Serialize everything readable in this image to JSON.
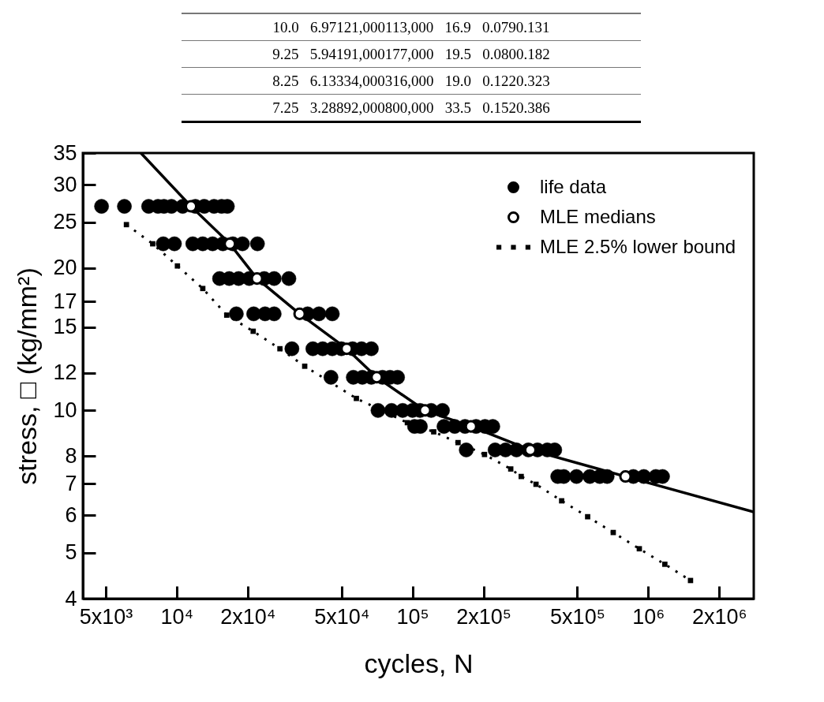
{
  "chart_data": {
    "type": "scatter",
    "xlabel": "cycles, N",
    "ylabel": "stress, □ (kg/mm²)",
    "log": "xy",
    "grid": false,
    "legend": "top right",
    "xlim": [
      4000,
      2800000
    ],
    "xticks": [
      {
        "value": 5000,
        "label": "5x10³"
      },
      {
        "value": 10000,
        "label": "10⁴"
      },
      {
        "value": 20000,
        "label": "2x10⁴"
      },
      {
        "value": 50000,
        "label": "5x10⁴"
      },
      {
        "value": 100000,
        "label": "10⁵"
      },
      {
        "value": 200000,
        "label": "2x10⁵"
      },
      {
        "value": 500000,
        "label": "5x10⁵"
      },
      {
        "value": 1000000,
        "label": "10⁶"
      },
      {
        "value": 2000000,
        "label": "2x10⁶"
      }
    ],
    "ylim": [
      4,
      35
    ],
    "yticks": [
      4,
      5,
      6,
      7,
      8,
      10,
      12,
      15,
      17,
      20,
      25,
      30,
      35
    ],
    "annotations": [
      "10.0   6.97121,000113,000   16.9   0.0790.131",
      "9.25   5.94191,000177,000   19.5   0.0800.182",
      "8.25   6.13334,000316,000   19.0   0.1220.323",
      "7.25   3.28892,000800,000   33.5   0.1520.386"
    ],
    "series": [
      {
        "name": "life data",
        "marker": "circle",
        "color": "#000000",
        "x": [
          4800,
          6000,
          7600,
          8330,
          8830,
          9500,
          10600,
          12000,
          13100,
          14400,
          15500,
          16400,
          8770,
          9780,
          11700,
          12900,
          14200,
          15700,
          17300,
          19000,
          22000,
          15200,
          16700,
          18300,
          20300,
          23500,
          25900,
          29900,
          17900,
          21200,
          23700,
          25900,
          35900,
          40100,
          45700,
          30800,
          37800,
          41600,
          45700,
          49900,
          55700,
          60800,
          66900,
          45100,
          56100,
          61300,
          66900,
          74600,
          80300,
          86400,
          71400,
          81500,
          90900,
          100000,
          107600,
          120000,
          134000,
          102000,
          108000,
          136000,
          151000,
          167000,
          186000,
          203000,
          219000,
          169000,
          224000,
          248000,
          276000,
          310000,
          339000,
          373000,
          401000,
          413000,
          438000,
          496000,
          565000,
          622000,
          669000,
          864000,
          957000,
          1076000,
          1149000
        ],
        "values": [
          27,
          27,
          27,
          27,
          27,
          27,
          27,
          27,
          27,
          27,
          27,
          27,
          22.5,
          22.5,
          22.5,
          22.5,
          22.5,
          22.5,
          22.5,
          22.5,
          22.5,
          19,
          19,
          19,
          19,
          19,
          19,
          19,
          16,
          16,
          16,
          16,
          16,
          16,
          16,
          13.5,
          13.5,
          13.5,
          13.5,
          13.5,
          13.5,
          13.5,
          13.5,
          11.75,
          11.75,
          11.75,
          11.75,
          11.75,
          11.75,
          11.75,
          10,
          10,
          10,
          10,
          10,
          10,
          10,
          9.25,
          9.25,
          9.25,
          9.25,
          9.25,
          9.25,
          9.25,
          9.25,
          8.25,
          8.25,
          8.25,
          8.25,
          8.25,
          8.25,
          8.25,
          8.25,
          7.25,
          7.25,
          7.25,
          7.25,
          7.25,
          7.25,
          7.25,
          7.25,
          7.25,
          7.25
        ]
      },
      {
        "name": "MLE medians",
        "marker": "circle",
        "color": "#ffffff",
        "x": [
          11500,
          16800,
          21900,
          33200,
          52600,
          70500,
          113000,
          177000,
          316000,
          800000
        ],
        "values": [
          27,
          22.5,
          19,
          16,
          13.5,
          11.75,
          10,
          9.25,
          8.25,
          7.25
        ]
      },
      {
        "type": "line",
        "line_style": "solid",
        "color": "#000000",
        "x": [
          7050,
          11500,
          16800,
          21900,
          33200,
          52600,
          70500,
          113000,
          177000,
          316000,
          800000,
          2800000
        ],
        "values": [
          35,
          27,
          22.5,
          19,
          16,
          13.5,
          11.75,
          10,
          9.25,
          8.25,
          7.25,
          6.1
        ]
      },
      {
        "name": "MLE 2.5% lower bound",
        "type": "line",
        "line_style": "dotted",
        "marker": "square",
        "color": "#000000",
        "x": [
          6120,
          7910,
          10070,
          12900,
          16300,
          21100,
          27400,
          34900,
          57800,
          95100,
          123000,
          156000,
          202000,
          261000,
          289000,
          334000,
          429000,
          553000,
          710000,
          916000,
          1175000,
          1510000
        ],
        "values": [
          24.7,
          22.5,
          20.2,
          18.1,
          15.9,
          14.7,
          13.5,
          12.4,
          10.6,
          9.42,
          9.01,
          8.55,
          8.07,
          7.52,
          7.25,
          6.98,
          6.44,
          5.96,
          5.52,
          5.1,
          4.73,
          4.37
        ]
      }
    ]
  }
}
